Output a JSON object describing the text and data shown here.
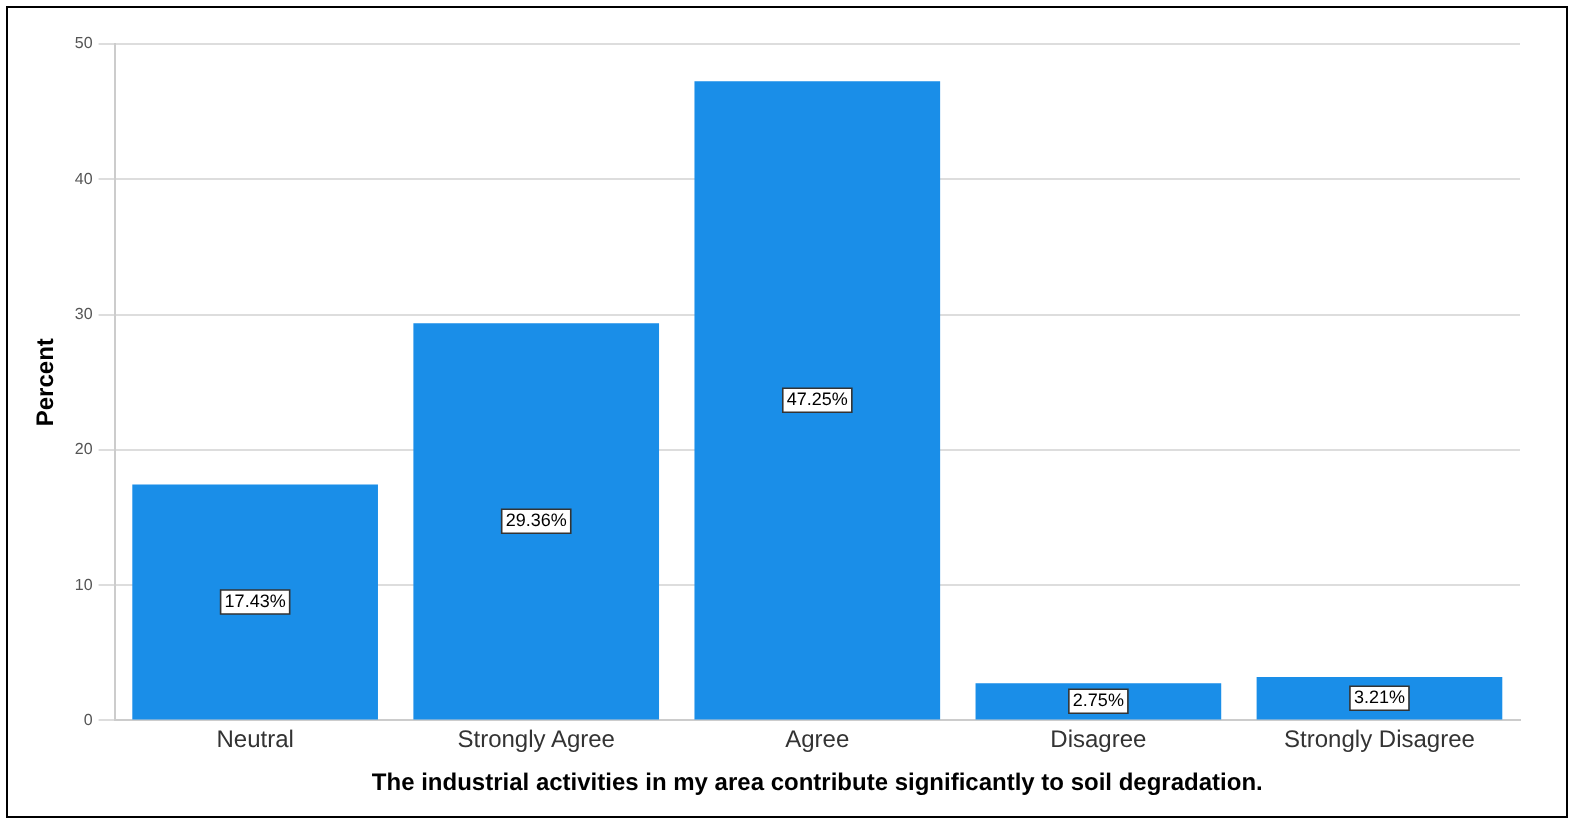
{
  "chart_data": {
    "type": "bar",
    "xlabel": "The industrial activities in my area contribute significantly to soil degradation.",
    "ylabel": "Percent",
    "categories": [
      "Neutral",
      "Strongly Agree",
      "Agree",
      "Disagree",
      "Strongly Disagree"
    ],
    "values": [
      17.43,
      29.36,
      47.25,
      2.75,
      3.21
    ],
    "value_labels": [
      "17.43%",
      "29.36%",
      "47.25%",
      "2.75%",
      "3.21%"
    ],
    "color": "#1a8ee8",
    "ylim": [
      0,
      50
    ],
    "yticks": [
      0,
      10,
      20,
      30,
      40,
      50
    ],
    "grid": "y",
    "legend": false
  }
}
